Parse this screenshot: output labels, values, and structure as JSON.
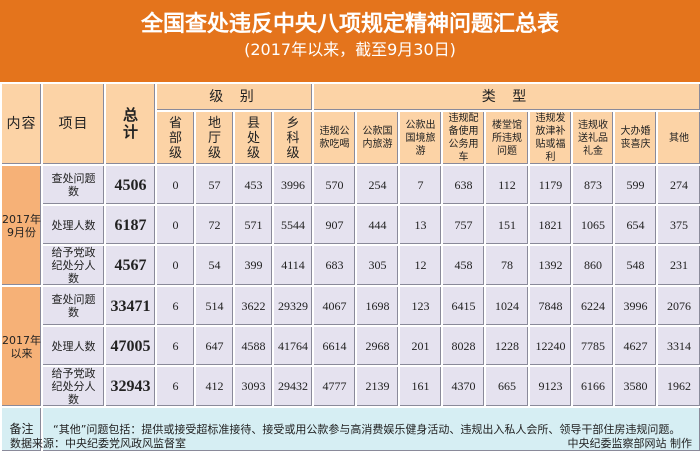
{
  "title": "全国查处违反中央八项规定精神问题汇总表",
  "subtitle": "(2017年以来，截至9月30日)",
  "headers": {
    "content": "内容",
    "item": "项目",
    "total": "总计",
    "level": "级 别",
    "type": "类 型",
    "levels": [
      "省部级",
      "地厅级",
      "县处级",
      "乡科级"
    ],
    "types": [
      "违规公款吃喝",
      "公款国内旅游",
      "公款出国境旅游",
      "违规配备使用公务用车",
      "楼堂馆所违规问题",
      "违规发放津补贴或福利",
      "违规收送礼品礼金",
      "大办婚丧喜庆",
      "其他"
    ]
  },
  "groups": [
    {
      "label": "2017年9月份",
      "rows": [
        {
          "item": "查处问题数",
          "values": [
            "4506",
            "0",
            "57",
            "453",
            "3996",
            "570",
            "254",
            "7",
            "638",
            "112",
            "1179",
            "873",
            "599",
            "274"
          ]
        },
        {
          "item": "处理人数",
          "values": [
            "6187",
            "0",
            "72",
            "571",
            "5544",
            "907",
            "444",
            "13",
            "757",
            "151",
            "1821",
            "1065",
            "654",
            "375"
          ]
        },
        {
          "item": "给予党政纪处分人数",
          "values": [
            "4567",
            "0",
            "54",
            "399",
            "4114",
            "683",
            "305",
            "12",
            "458",
            "78",
            "1392",
            "860",
            "548",
            "231"
          ]
        }
      ]
    },
    {
      "label": "2017年以来",
      "rows": [
        {
          "item": "查处问题数",
          "values": [
            "33471",
            "6",
            "514",
            "3622",
            "29329",
            "4067",
            "1698",
            "123",
            "6415",
            "1024",
            "7848",
            "6224",
            "3996",
            "2076"
          ]
        },
        {
          "item": "处理人数",
          "values": [
            "47005",
            "6",
            "647",
            "4588",
            "41764",
            "6614",
            "2968",
            "201",
            "8028",
            "1228",
            "12240",
            "7785",
            "4627",
            "3314"
          ]
        },
        {
          "item": "给予党政纪处分人数",
          "values": [
            "32943",
            "6",
            "412",
            "3093",
            "29432",
            "4777",
            "2139",
            "161",
            "4370",
            "665",
            "9123",
            "6166",
            "3580",
            "1962"
          ]
        }
      ]
    }
  ],
  "note": {
    "label": "备注",
    "text": "“其他”问题包括：提供或接受超标准接待、接受或用公款参与高消费娱乐健身活动、违规出入私人会所、领导干部住房违规问题。"
  },
  "footer": {
    "source": "数据来源：中央纪委党风政风监督室",
    "credit": "中央纪委监察部网站 制作"
  }
}
